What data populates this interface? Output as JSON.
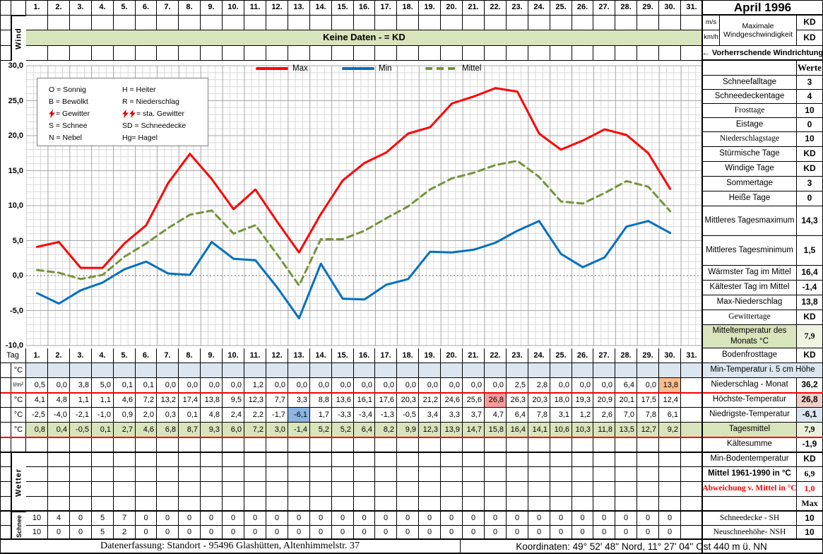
{
  "title": "April 1996",
  "days": [
    "1.",
    "2.",
    "3.",
    "4.",
    "5.",
    "6.",
    "7.",
    "8.",
    "9.",
    "10.",
    "11.",
    "12.",
    "13.",
    "14.",
    "15.",
    "16.",
    "17.",
    "18.",
    "19.",
    "20.",
    "21.",
    "22.",
    "23.",
    "24.",
    "25.",
    "26.",
    "27.",
    "28.",
    "29.",
    "30.",
    "31."
  ],
  "wind": {
    "row_label": "Wind",
    "banner": "Keine Daten -  = KD",
    "unit_ms": "m/s",
    "unit_kmh": "km/h",
    "speed_label": "Maximale\nWindgeschwindigkeit",
    "speed_value_ms": "KD",
    "speed_value_kmh": "KD",
    "direction_label": "←  Vorherrschende Windrichtung"
  },
  "chart_data": {
    "type": "line",
    "title": "",
    "xlabel": "",
    "ylabel": "",
    "x": [
      1,
      2,
      3,
      4,
      5,
      6,
      7,
      8,
      9,
      10,
      11,
      12,
      13,
      14,
      15,
      16,
      17,
      18,
      19,
      20,
      21,
      22,
      23,
      24,
      25,
      26,
      27,
      28,
      29,
      30
    ],
    "ylim": [
      -10,
      30
    ],
    "ytick_labels": [
      "30,0",
      "25,0",
      "20,0",
      "15,0",
      "10,0",
      "5,0",
      "0,0",
      "-5,0",
      "-10,0"
    ],
    "grid": "minor 1 deg and 1/3 day, major 5 deg and day boundaries, dotted zero line",
    "legend_position": "top",
    "series": [
      {
        "name": "Max",
        "color": "#ff0000",
        "line_style": "solid",
        "values": [
          4.1,
          4.8,
          1.1,
          1.1,
          4.6,
          7.2,
          13.2,
          17.4,
          13.8,
          9.5,
          12.3,
          7.7,
          3.3,
          8.8,
          13.6,
          16.1,
          17.6,
          20.3,
          21.2,
          24.6,
          25.6,
          26.8,
          26.3,
          20.3,
          18.0,
          19.3,
          20.9,
          20.1,
          17.5,
          12.4
        ]
      },
      {
        "name": "Min",
        "color": "#0070c0",
        "line_style": "solid",
        "values": [
          -2.5,
          -4.0,
          -2.1,
          -1.0,
          0.9,
          2.0,
          0.3,
          0.1,
          4.8,
          2.4,
          2.2,
          -1.7,
          -6.1,
          1.7,
          -3.3,
          -3.4,
          -1.3,
          -0.5,
          3.4,
          3.3,
          3.7,
          4.7,
          6.4,
          7.8,
          3.1,
          1.2,
          2.6,
          7.0,
          7.8,
          6.1
        ]
      },
      {
        "name": "Mittel",
        "color": "#76933c",
        "line_style": "dashed",
        "values": [
          0.8,
          0.4,
          -0.5,
          0.1,
          2.7,
          4.6,
          6.8,
          8.7,
          9.3,
          6.0,
          7.2,
          3.0,
          -1.4,
          5.2,
          5.2,
          6.4,
          8.2,
          9.9,
          12.3,
          13.9,
          14.7,
          15.8,
          16.4,
          14.1,
          10.6,
          10.3,
          11.8,
          13.5,
          12.7,
          9.2
        ]
      }
    ]
  },
  "symbol_legend": {
    "rows": [
      {
        "left": {
          "icons": 0,
          "text": "O = Sonnig"
        },
        "right": {
          "icons": 0,
          "text": "H = Heiter"
        }
      },
      {
        "left": {
          "icons": 0,
          "text": "B = Bewölkt"
        },
        "right": {
          "icons": 0,
          "text": "R = Niederschlag"
        }
      },
      {
        "left": {
          "icons": 1,
          "text": "= Gewitter"
        },
        "right": {
          "icons": 2,
          "text": "= sta. Gewitter"
        }
      },
      {
        "left": {
          "icons": 0,
          "text": "S = Schnee"
        },
        "right": {
          "icons": 0,
          "text": "SD = Schneedecke"
        }
      },
      {
        "left": {
          "icons": 0,
          "text": "N = Nebel"
        },
        "right": {
          "icons": 0,
          "text": "Hg= Hagel"
        }
      }
    ]
  },
  "stats_top": [
    {
      "label": "",
      "value": "Werte"
    },
    {
      "label": "Schneefalltage",
      "value": "3"
    },
    {
      "label": "Schneedeckentage",
      "value": "4"
    },
    {
      "label": "Frosttage",
      "value": "10",
      "serif": true
    },
    {
      "label": "Eistage",
      "value": "0"
    },
    {
      "label": "Niederschlagstage",
      "value": "10",
      "serif": true
    },
    {
      "label": "Stürmische Tage",
      "value": "KD"
    },
    {
      "label": "Windige Tage",
      "value": "KD"
    },
    {
      "label": "Sommertage",
      "value": "3"
    },
    {
      "label": "Heiße Tage",
      "value": "0"
    },
    {
      "label": "Mittleres Tagesmaximum",
      "value": "14,3"
    },
    {
      "label": "Mittleres Tagesminimum",
      "value": "1,5"
    },
    {
      "label": "Wärmster Tag im Mittel",
      "value": "16,4"
    },
    {
      "label": "Kältester Tag im Mittel",
      "value": "-1,4"
    },
    {
      "label": "Max-Niederschlag",
      "value": "13,8"
    },
    {
      "label": "Gewittertage",
      "value": "KD",
      "serif": true
    },
    {
      "label": "Mitteltemperatur des Monats °C",
      "value": "7,9",
      "bg": "#d8e4bc",
      "value_bg": "#eef3e2",
      "value_serif": true
    }
  ],
  "stats_bottom": [
    {
      "label": "Bodenfrosttage",
      "value": "KD"
    },
    {
      "label": "Min-Temperatur i. 5 cm Höhe",
      "value": "",
      "merged": true,
      "bg": "#dce6f1"
    },
    {
      "label": "Niederschlag - Monat",
      "value": "36,2"
    },
    {
      "label": "Höchste-Temperatur",
      "value": "26,8",
      "value_bg": "#f2cfca"
    },
    {
      "label": "Niedrigste-Temperatur",
      "value": "-6,1",
      "value_bg": "#dce6f1"
    },
    {
      "label": "Tagesmittel",
      "value": "7,9",
      "label_bg": "#d8e4bc",
      "value_bg": "#eaf1dc",
      "value_serif": true
    },
    {
      "label": "Kältesumme",
      "value": "-1,9"
    },
    {
      "label": "Min-Bodentemperatur",
      "value": "KD"
    },
    {
      "label": "Mittel 1961-1990 in °C",
      "value": "6,9",
      "label_bold": true,
      "value_serif": true
    },
    {
      "label": "Abweichung v. Mittel in °C",
      "value": "1,0",
      "red": true
    },
    {
      "label": "",
      "value": "Max",
      "value_serif_bold": true
    },
    {
      "label": "Schneedecke -   SH",
      "value": "10",
      "serif": true
    },
    {
      "label": "Neuschneehöhe- NSH",
      "value": "10",
      "serif": true
    }
  ],
  "table": {
    "tag_label": "Tag",
    "unit_temp": "°C",
    "unit_precip": "l/m²",
    "precipitation": [
      0.5,
      0.0,
      3.8,
      5.0,
      0.1,
      0.1,
      0.0,
      0.0,
      0.0,
      0.0,
      1.2,
      0.0,
      0.0,
      0.0,
      0.0,
      0.0,
      0.0,
      0.0,
      0.0,
      0.0,
      0.0,
      0.0,
      2.5,
      2.8,
      0.0,
      0.0,
      0.0,
      6.4,
      0.0,
      13.8
    ],
    "wetter_label": "Wetter",
    "schnee_label": "Schnee",
    "schneedecke": [
      10,
      4,
      0,
      5,
      7,
      0,
      0,
      0,
      0,
      0,
      0,
      0,
      0,
      0,
      0,
      0,
      0,
      0,
      0,
      0,
      0,
      0,
      0,
      0,
      0,
      0,
      0,
      0,
      0,
      0
    ],
    "neuschnee": [
      10,
      0,
      0,
      5,
      2,
      0,
      0,
      0,
      0,
      0,
      0,
      0,
      0,
      0,
      0,
      0,
      0,
      0,
      0,
      0,
      0,
      0,
      0,
      0,
      0,
      0,
      0,
      0,
      0,
      0
    ]
  },
  "highlights": [
    {
      "row": "niederschlag",
      "day": 30,
      "color": "#fabf8f"
    },
    {
      "row": "hoechste-temperatur",
      "day": 22,
      "color": "#f79b9b"
    },
    {
      "row": "niedrigste-temperatur",
      "day": 13,
      "color": "#8db4e2"
    }
  ],
  "colors": {
    "green_band": "#d8e4bc",
    "light_blue_row": "#dce6f1",
    "grid_minor": "#d9d9d9",
    "grid_major": "#a6a6a6",
    "red_rule": "#ff0000"
  },
  "footer": {
    "left": "Datenerfassung:  Standort -  95496  Glashütten, Altenhimmelstr. 37",
    "right": "Koordinaten:  49° 52' 48'' Nord,   11° 27' 04'' Ost   440 m ü. NN"
  }
}
